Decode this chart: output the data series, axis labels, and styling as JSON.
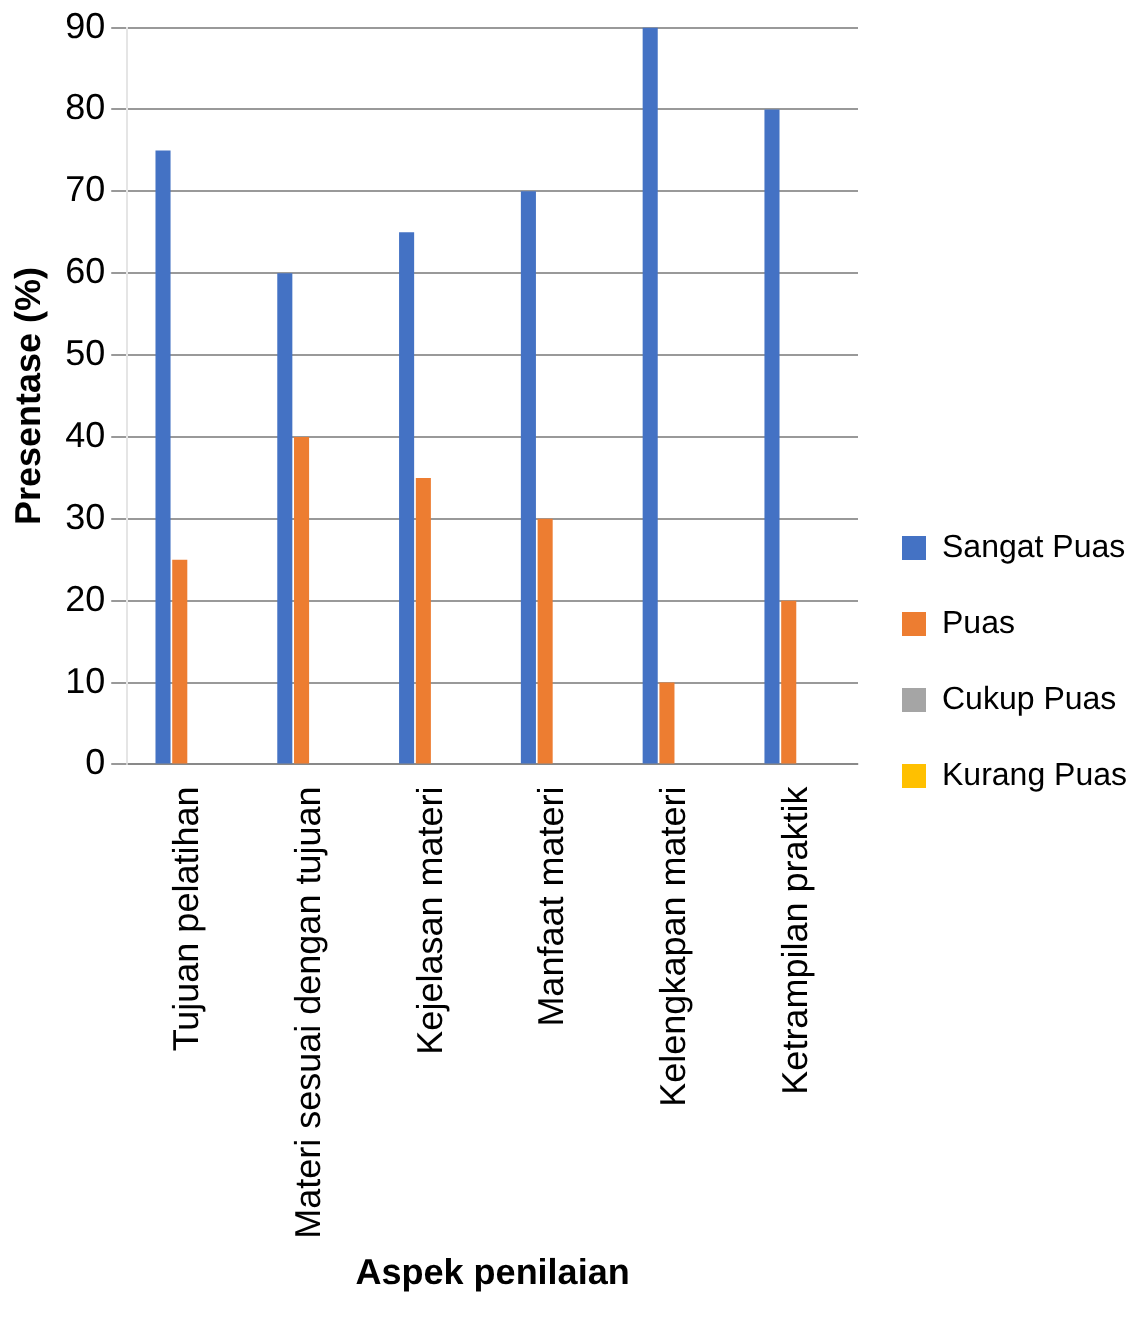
{
  "chart_data": {
    "type": "bar",
    "xlabel": "Aspek penilaian",
    "ylabel": "Presentase (%)",
    "categories": [
      "Tujuan pelatihan",
      "Materi sesuai dengan tujuan",
      "Kejelasan materi",
      "Manfaat materi",
      "Kelengkapan materi",
      "Ketrampilan praktik"
    ],
    "series": [
      {
        "name": "Sangat Puas",
        "color": "#4472c4",
        "values": [
          75,
          60,
          65,
          70,
          90,
          80
        ]
      },
      {
        "name": "Puas",
        "color": "#ed7d31",
        "values": [
          25,
          40,
          35,
          30,
          10,
          20
        ]
      },
      {
        "name": "Cukup Puas",
        "color": "#a5a5a5",
        "values": [
          0,
          0,
          0,
          0,
          0,
          0
        ]
      },
      {
        "name": "Kurang Puas",
        "color": "#ffc000",
        "values": [
          0,
          0,
          0,
          0,
          0,
          0
        ]
      }
    ],
    "ylim": [
      0,
      90
    ],
    "yticks": [
      0,
      10,
      20,
      30,
      40,
      50,
      60,
      70,
      80,
      90
    ],
    "grid": "y",
    "legend": "right"
  }
}
